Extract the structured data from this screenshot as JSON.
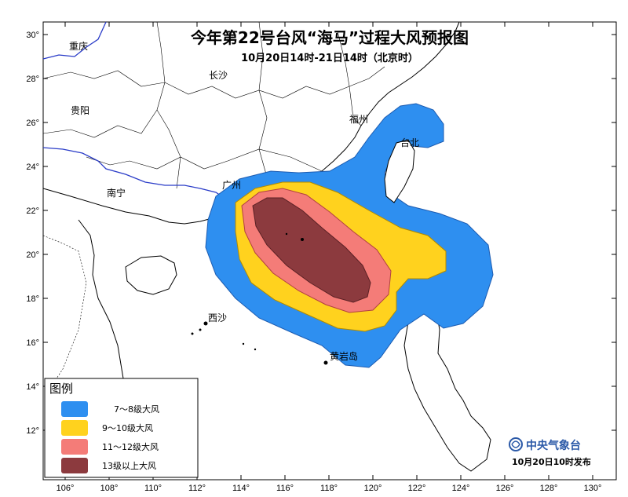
{
  "title": "今年第22号台风“海马”过程大风预报图",
  "subtitle": "10月20日14时-21日14时（北京时）",
  "lat_ticks": [
    "30°",
    "28°",
    "26°",
    "24°",
    "22°",
    "20°",
    "18°",
    "16°",
    "14°",
    "12°"
  ],
  "lon_ticks": [
    "106°",
    "108°",
    "110°",
    "112°",
    "114°",
    "116°",
    "118°",
    "120°",
    "122°",
    "124°",
    "126°",
    "128°",
    "130°"
  ],
  "places": {
    "chongqing": "重庆",
    "changsha": "长沙",
    "guiyang": "贵阳",
    "fuzhou": "福州",
    "taibei": "台北",
    "nanning": "南宁",
    "guangzhou": "广州",
    "xisha": "西沙",
    "huangyandao": "黄岩岛"
  },
  "legend": {
    "title": "图例",
    "items": [
      {
        "label": "7～8级大风",
        "color": "#2e8ff0"
      },
      {
        "label": "9～10级大风",
        "color": "#ffd21e"
      },
      {
        "label": "11～12级大风",
        "color": "#f47c78"
      },
      {
        "label": "13级以上大风",
        "color": "#8c3a3e"
      }
    ]
  },
  "agency": "中央气象台",
  "issue_time": "10月20日10时发布"
}
